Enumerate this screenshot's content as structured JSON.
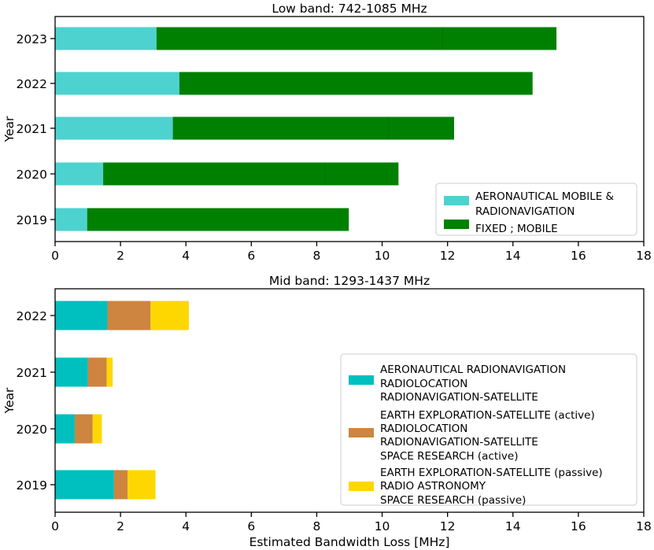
{
  "chart_data": [
    {
      "type": "bar",
      "orientation": "horizontal",
      "stacked": true,
      "title": "Low band: 742-1085 MHz",
      "xlabel": "",
      "ylabel": "Year",
      "xlim": [
        0,
        18
      ],
      "xticks": [
        "0",
        "2",
        "4",
        "6",
        "8",
        "10",
        "12",
        "14",
        "16",
        "18"
      ],
      "categories": [
        "2019",
        "2020",
        "2021",
        "2022",
        "2023"
      ],
      "legend_position": "lower-right",
      "series": [
        {
          "name": "AERONAUTICAL MOBILE & RADIONAVIGATION",
          "legend_lines": [
            "AERONAUTICAL MOBILE &",
            "RADIONAVIGATION"
          ],
          "color": "#4dd2d0",
          "values": [
            0.98,
            1.47,
            3.6,
            3.8,
            3.1
          ]
        },
        {
          "name": "FIXED ; MOBILE",
          "legend_lines": [
            "FIXED ; MOBILE"
          ],
          "color": "#008000",
          "values": [
            8.0,
            9.03,
            8.6,
            10.8,
            12.23
          ]
        }
      ],
      "segment_dividers": [
        null,
        8.25,
        10.2,
        null,
        11.85
      ],
      "divider_color": "#00710a"
    },
    {
      "type": "bar",
      "orientation": "horizontal",
      "stacked": true,
      "title": "Mid band: 1293-1437 MHz",
      "xlabel": "Estimated Bandwidth Loss [MHz]",
      "ylabel": "Year",
      "xlim": [
        0,
        18
      ],
      "xticks": [
        "0",
        "2",
        "4",
        "6",
        "8",
        "10",
        "12",
        "14",
        "16",
        "18"
      ],
      "categories": [
        "2019",
        "2020",
        "2021",
        "2022"
      ],
      "legend_position": "lower-right",
      "series": [
        {
          "name": "AERONAUTICAL RADIONAVIGATION / RADIOLOCATION / RADIONAVIGATION-SATELLITE",
          "legend_lines": [
            "AERONAUTICAL RADIONAVIGATION",
            "RADIOLOCATION",
            "RADIONAVIGATION-SATELLITE"
          ],
          "color": "#00bfbf",
          "values": [
            1.8,
            0.6,
            1.0,
            1.6
          ]
        },
        {
          "name": "EARTH EXPLORATION-SATELLITE (active) / RADIOLOCATION / RADIONAVIGATION-SATELLITE / SPACE RESEARCH (active)",
          "legend_lines": [
            "EARTH EXPLORATION-SATELLITE (active)",
            "RADIOLOCATION",
            "RADIONAVIGATION-SATELLITE",
            "SPACE RESEARCH (active)"
          ],
          "color": "#cd853f",
          "values": [
            0.42,
            0.55,
            0.58,
            1.32
          ]
        },
        {
          "name": "EARTH EXPLORATION-SATELLITE (passive) / RADIO ASTRONOMY / SPACE RESEARCH (passive)",
          "legend_lines": [
            "EARTH EXPLORATION-SATELLITE (passive)",
            "RADIO ASTRONOMY",
            "SPACE RESEARCH (passive)"
          ],
          "color": "#ffd700",
          "values": [
            0.85,
            0.28,
            0.18,
            1.17
          ]
        }
      ]
    }
  ]
}
